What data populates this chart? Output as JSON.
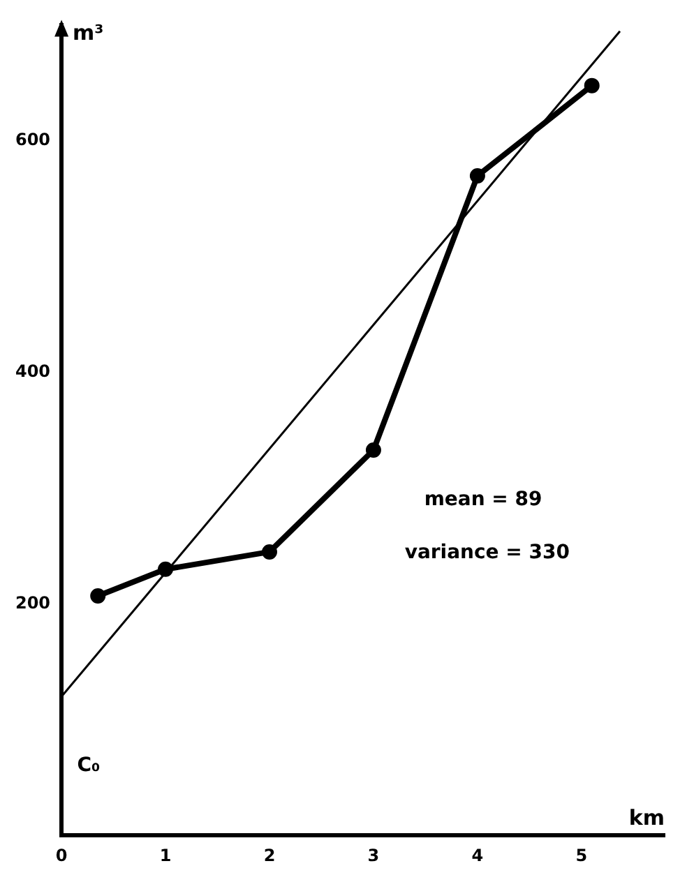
{
  "chart_data": {
    "type": "line",
    "xlabel": "km",
    "ylabel": "m³",
    "xlim": [
      0,
      5.8
    ],
    "ylim": [
      0,
      700
    ],
    "xticks": [
      0,
      1,
      2,
      3,
      4,
      5
    ],
    "yticks": [
      200,
      400,
      600
    ],
    "grid": false,
    "legend": false,
    "marker": "circle",
    "line_style": "solid",
    "series": [
      {
        "color": "#000000",
        "x": [
          0.35,
          1,
          2,
          3,
          4,
          5.1
        ],
        "values": [
          207,
          230,
          245,
          333,
          570,
          648
        ]
      },
      {
        "type": "line",
        "marker": "none",
        "color": "#000000",
        "x": [
          0,
          5.37
        ],
        "values": [
          120,
          695
        ]
      }
    ],
    "annotations": [
      "C₀",
      "mean = 89",
      "variance = 330"
    ]
  }
}
